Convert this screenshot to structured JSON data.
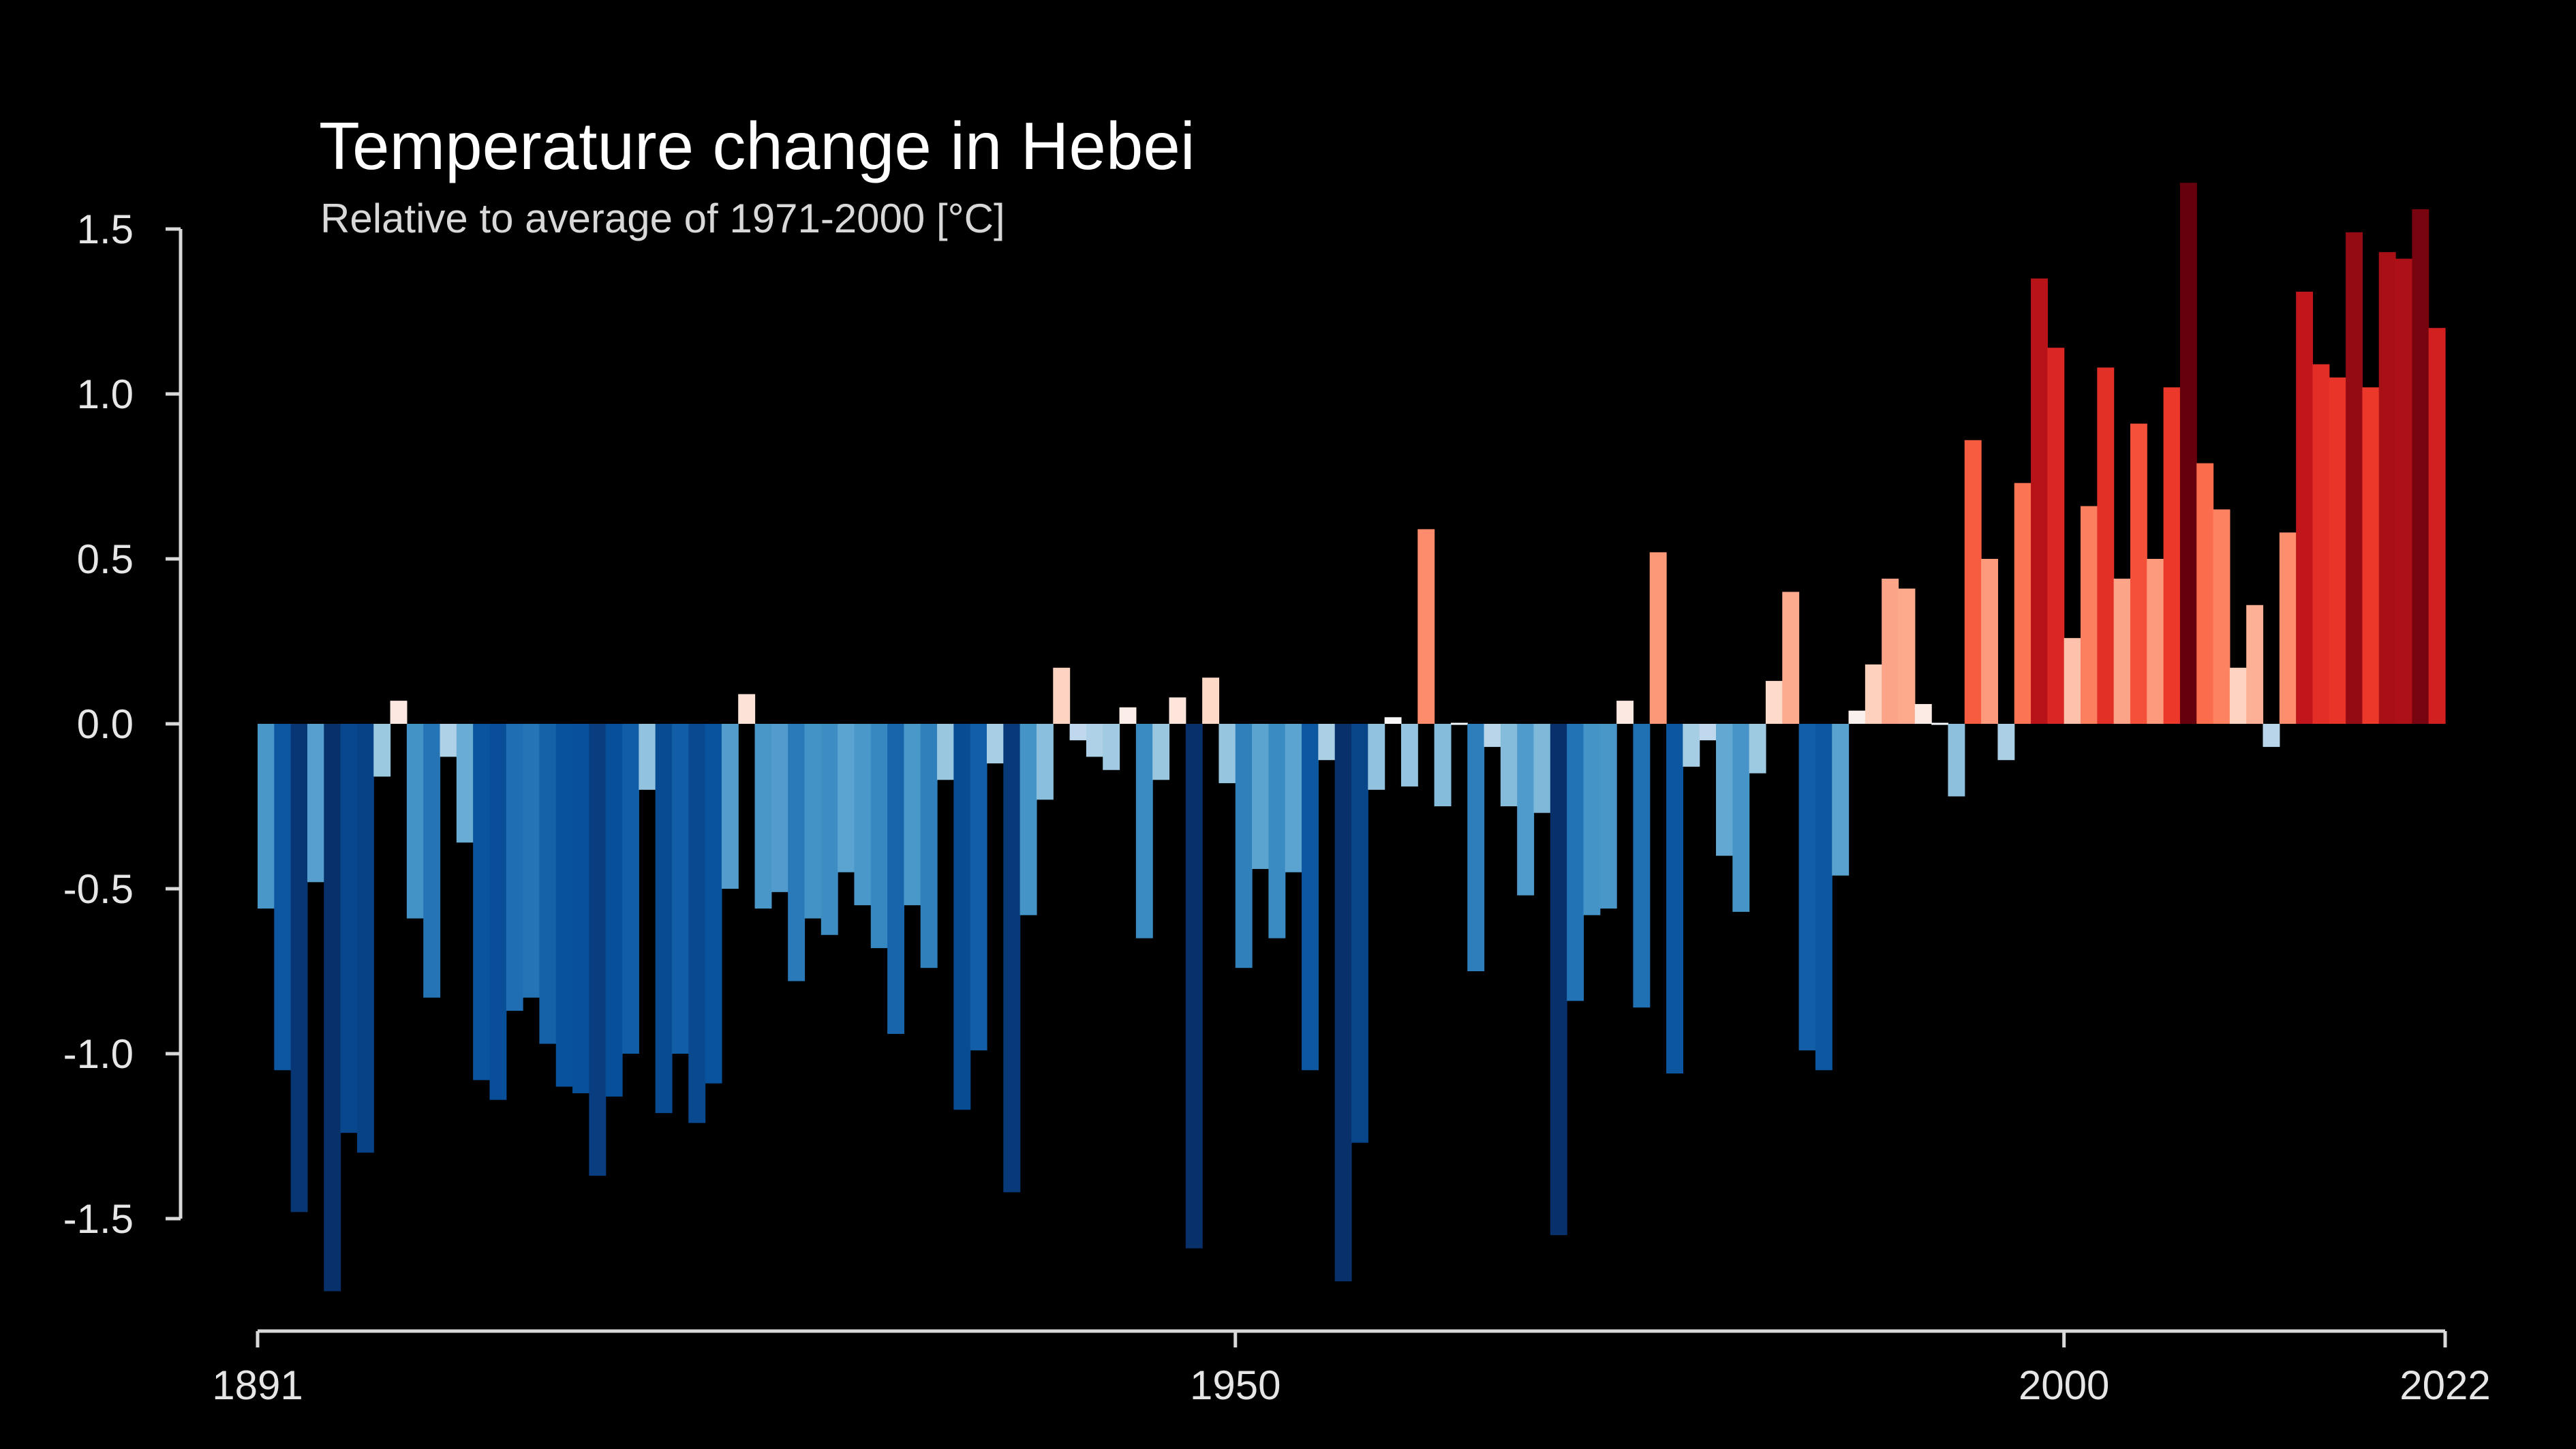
{
  "chart_data": {
    "type": "bar",
    "title": "Temperature change in Hebei",
    "subtitle": "Relative to average of 1971-2000  [°C]",
    "xlabel": "",
    "ylabel": "",
    "ylim": [
      -1.75,
      1.65
    ],
    "grid": false,
    "legend": "none",
    "y_ticks": [
      1.5,
      1.0,
      0.5,
      0.0,
      -0.5,
      -1.0,
      -1.5
    ],
    "y_tick_labels": [
      "1.5",
      "1.0",
      "0.5",
      "0.0",
      "-0.5",
      "-1.0",
      "-1.5"
    ],
    "x_ticks": [
      1891,
      1950,
      2000,
      2022
    ],
    "x_tick_labels": [
      "1891",
      "1950",
      "2000",
      "2022"
    ],
    "start_year": 1891,
    "end_year": 2022,
    "values": [
      -0.56,
      -1.05,
      -1.48,
      -0.48,
      -1.72,
      -1.24,
      -1.3,
      -0.16,
      0.07,
      -0.59,
      -0.83,
      -0.1,
      -0.36,
      -1.08,
      -1.14,
      -0.87,
      -0.83,
      -0.97,
      -1.1,
      -1.12,
      -1.37,
      -1.13,
      -1.0,
      -0.2,
      -1.18,
      -1.0,
      -1.21,
      -1.09,
      -0.5,
      0.09,
      -0.56,
      -0.51,
      -0.78,
      -0.59,
      -0.64,
      -0.45,
      -0.55,
      -0.68,
      -0.94,
      -0.55,
      -0.74,
      -0.17,
      -1.17,
      -0.99,
      -0.12,
      -1.42,
      -0.58,
      -0.23,
      0.17,
      -0.05,
      -0.1,
      -0.14,
      0.05,
      -0.65,
      -0.17,
      0.08,
      -1.59,
      0.14,
      -0.18,
      -0.74,
      -0.44,
      -0.65,
      -0.45,
      -1.05,
      -0.11,
      -1.69,
      -1.27,
      -0.2,
      0.02,
      -0.19,
      0.59,
      -0.25,
      0.0,
      -0.75,
      -0.07,
      -0.25,
      -0.52,
      -0.27,
      -1.55,
      -0.84,
      -0.58,
      -0.56,
      0.07,
      -0.86,
      0.52,
      -1.06,
      -0.13,
      -0.05,
      -0.4,
      -0.57,
      -0.15,
      0.13,
      0.4,
      -0.99,
      -1.05,
      -0.46,
      0.04,
      0.18,
      0.44,
      0.41,
      0.06,
      0.0,
      -0.22,
      0.86,
      0.5,
      -0.11,
      0.73,
      1.35,
      1.14,
      0.26,
      0.66,
      1.08,
      0.44,
      0.91,
      0.5,
      1.02,
      1.64,
      0.79,
      0.65,
      0.17,
      0.36,
      -0.07,
      0.58,
      1.31,
      1.09,
      1.05,
      1.49,
      1.02,
      1.43,
      1.41,
      1.56,
      1.2
    ]
  }
}
